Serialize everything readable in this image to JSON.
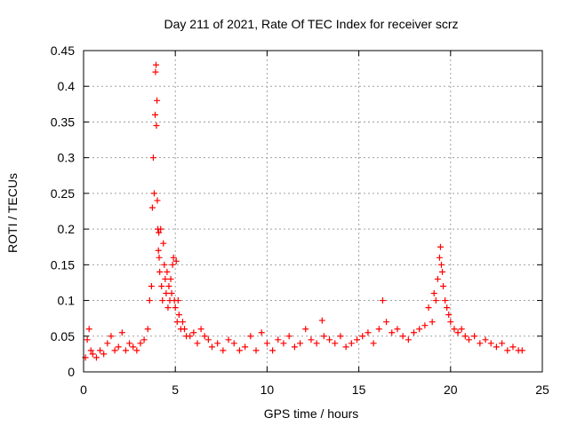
{
  "chart_data": {
    "type": "scatter",
    "title": "Day 211 of 2021, Rate Of TEC Index for receiver scrz",
    "xlabel": "GPS time / hours",
    "ylabel": "ROTI / TECUs",
    "xlim": [
      0,
      25
    ],
    "ylim": [
      0,
      0.45
    ],
    "x_ticks": [
      0,
      5,
      10,
      15,
      20,
      25
    ],
    "x_tick_labels": [
      "0",
      "5",
      "10",
      "15",
      "20",
      "25"
    ],
    "y_ticks": [
      0,
      0.05,
      0.1,
      0.15,
      0.2,
      0.25,
      0.3,
      0.35,
      0.4,
      0.45
    ],
    "y_tick_labels": [
      "0",
      "0.05",
      "0.1",
      "0.15",
      "0.2",
      "0.25",
      "0.3",
      "0.35",
      "0.4",
      "0.45"
    ],
    "grid": true,
    "marker": "+",
    "color": "#ff0000",
    "series": [
      {
        "x": [
          0.1,
          0.2,
          0.3,
          0.4,
          0.5,
          0.7,
          0.9,
          1.1,
          1.3,
          1.5,
          1.7,
          1.9,
          2.1,
          2.3,
          2.5,
          2.7,
          2.9,
          3.1,
          3.3,
          3.5,
          3.6,
          3.7,
          3.75,
          3.8,
          3.85,
          3.9,
          3.92,
          3.95,
          3.97,
          4.0,
          4.02,
          4.05,
          4.08,
          4.1,
          4.12,
          4.15,
          4.2,
          4.25,
          4.3,
          4.35,
          4.4,
          4.45,
          4.5,
          4.55,
          4.6,
          4.65,
          4.7,
          4.75,
          4.8,
          4.85,
          4.9,
          4.95,
          5.0,
          5.05,
          5.1,
          5.15,
          5.2,
          5.3,
          5.4,
          5.5,
          5.6,
          5.8,
          6.0,
          6.2,
          6.4,
          6.6,
          6.8,
          7.0,
          7.3,
          7.6,
          7.9,
          8.2,
          8.5,
          8.8,
          9.1,
          9.4,
          9.7,
          10.0,
          10.3,
          10.6,
          10.9,
          11.2,
          11.5,
          11.8,
          12.1,
          12.4,
          12.7,
          13.0,
          13.1,
          13.4,
          13.7,
          14.0,
          14.3,
          14.6,
          14.9,
          15.2,
          15.5,
          15.8,
          16.1,
          16.3,
          16.5,
          16.8,
          17.1,
          17.4,
          17.7,
          18.0,
          18.3,
          18.6,
          18.8,
          19.0,
          19.1,
          19.2,
          19.3,
          19.4,
          19.45,
          19.5,
          19.55,
          19.6,
          19.7,
          19.8,
          19.9,
          20.0,
          20.2,
          20.4,
          20.6,
          20.8,
          21.0,
          21.3,
          21.6,
          21.9,
          22.2,
          22.5,
          22.8,
          23.1,
          23.4,
          23.7,
          23.9
        ],
        "y": [
          0.02,
          0.045,
          0.06,
          0.03,
          0.025,
          0.02,
          0.03,
          0.025,
          0.04,
          0.05,
          0.03,
          0.035,
          0.055,
          0.03,
          0.04,
          0.035,
          0.03,
          0.04,
          0.045,
          0.06,
          0.1,
          0.12,
          0.23,
          0.3,
          0.25,
          0.36,
          0.42,
          0.43,
          0.345,
          0.38,
          0.24,
          0.2,
          0.17,
          0.195,
          0.16,
          0.14,
          0.2,
          0.12,
          0.1,
          0.18,
          0.15,
          0.13,
          0.11,
          0.14,
          0.09,
          0.12,
          0.1,
          0.13,
          0.11,
          0.15,
          0.16,
          0.1,
          0.09,
          0.155,
          0.07,
          0.1,
          0.08,
          0.06,
          0.07,
          0.06,
          0.05,
          0.05,
          0.055,
          0.04,
          0.06,
          0.05,
          0.045,
          0.035,
          0.04,
          0.03,
          0.045,
          0.04,
          0.03,
          0.035,
          0.05,
          0.03,
          0.055,
          0.04,
          0.03,
          0.045,
          0.04,
          0.05,
          0.035,
          0.04,
          0.06,
          0.045,
          0.04,
          0.072,
          0.05,
          0.045,
          0.04,
          0.05,
          0.035,
          0.04,
          0.045,
          0.05,
          0.055,
          0.04,
          0.06,
          0.1,
          0.07,
          0.055,
          0.06,
          0.05,
          0.045,
          0.055,
          0.06,
          0.065,
          0.09,
          0.07,
          0.11,
          0.1,
          0.13,
          0.16,
          0.175,
          0.15,
          0.14,
          0.12,
          0.1,
          0.09,
          0.08,
          0.07,
          0.06,
          0.055,
          0.06,
          0.05,
          0.045,
          0.05,
          0.04,
          0.045,
          0.04,
          0.035,
          0.04,
          0.03,
          0.035,
          0.03,
          0.03
        ]
      }
    ]
  }
}
